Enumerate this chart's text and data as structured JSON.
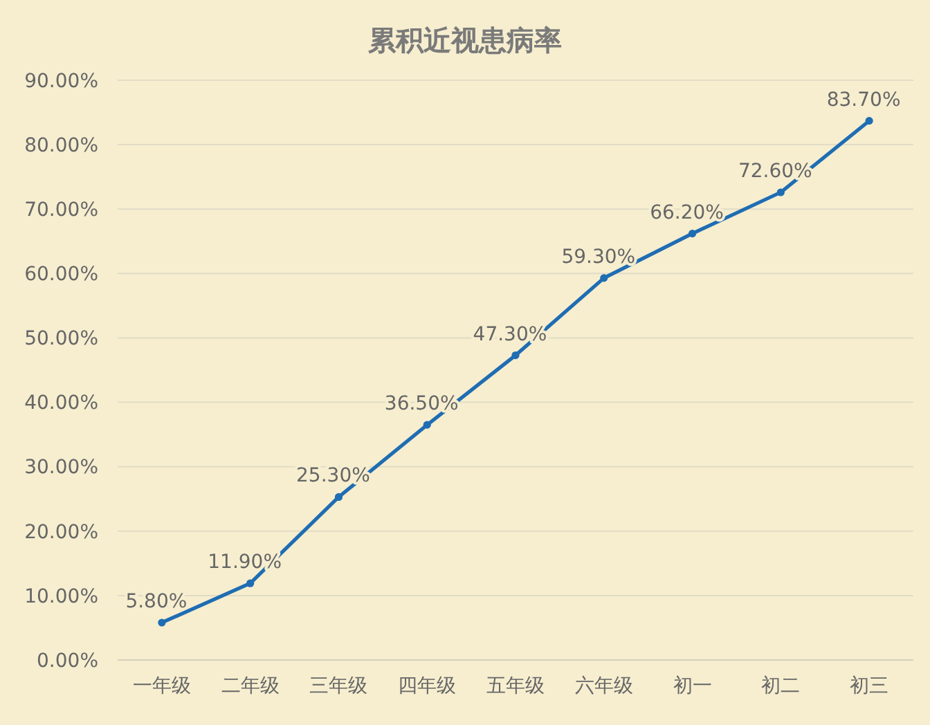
{
  "chart_data": {
    "type": "line",
    "title": "累积近视患病率",
    "categories": [
      "一年级",
      "二年级",
      "三年级",
      "四年级",
      "五年级",
      "六年级",
      "初一",
      "初二",
      "初三"
    ],
    "series": [
      {
        "color": "#1f6db3",
        "values": [
          5.8,
          11.9,
          25.3,
          36.5,
          47.3,
          59.3,
          66.2,
          72.6,
          83.7
        ],
        "value_labels": [
          "5.80%",
          "11.90%",
          "25.30%",
          "36.50%",
          "47.30%",
          "59.30%",
          "66.20%",
          "72.60%",
          "83.70%"
        ]
      }
    ],
    "ylim": [
      0,
      90
    ],
    "yticks": [
      {
        "value": 0,
        "label": "0.00%"
      },
      {
        "value": 10,
        "label": "10.00%"
      },
      {
        "value": 20,
        "label": "20.00%"
      },
      {
        "value": 30,
        "label": "30.00%"
      },
      {
        "value": 40,
        "label": "40.00%"
      },
      {
        "value": 50,
        "label": "50.00%"
      },
      {
        "value": 60,
        "label": "60.00%"
      },
      {
        "value": 70,
        "label": "70.00%"
      },
      {
        "value": 80,
        "label": "80.00%"
      },
      {
        "value": 90,
        "label": "90.00%"
      }
    ],
    "grid": "y",
    "marker": "circle",
    "line_style": "solid"
  }
}
